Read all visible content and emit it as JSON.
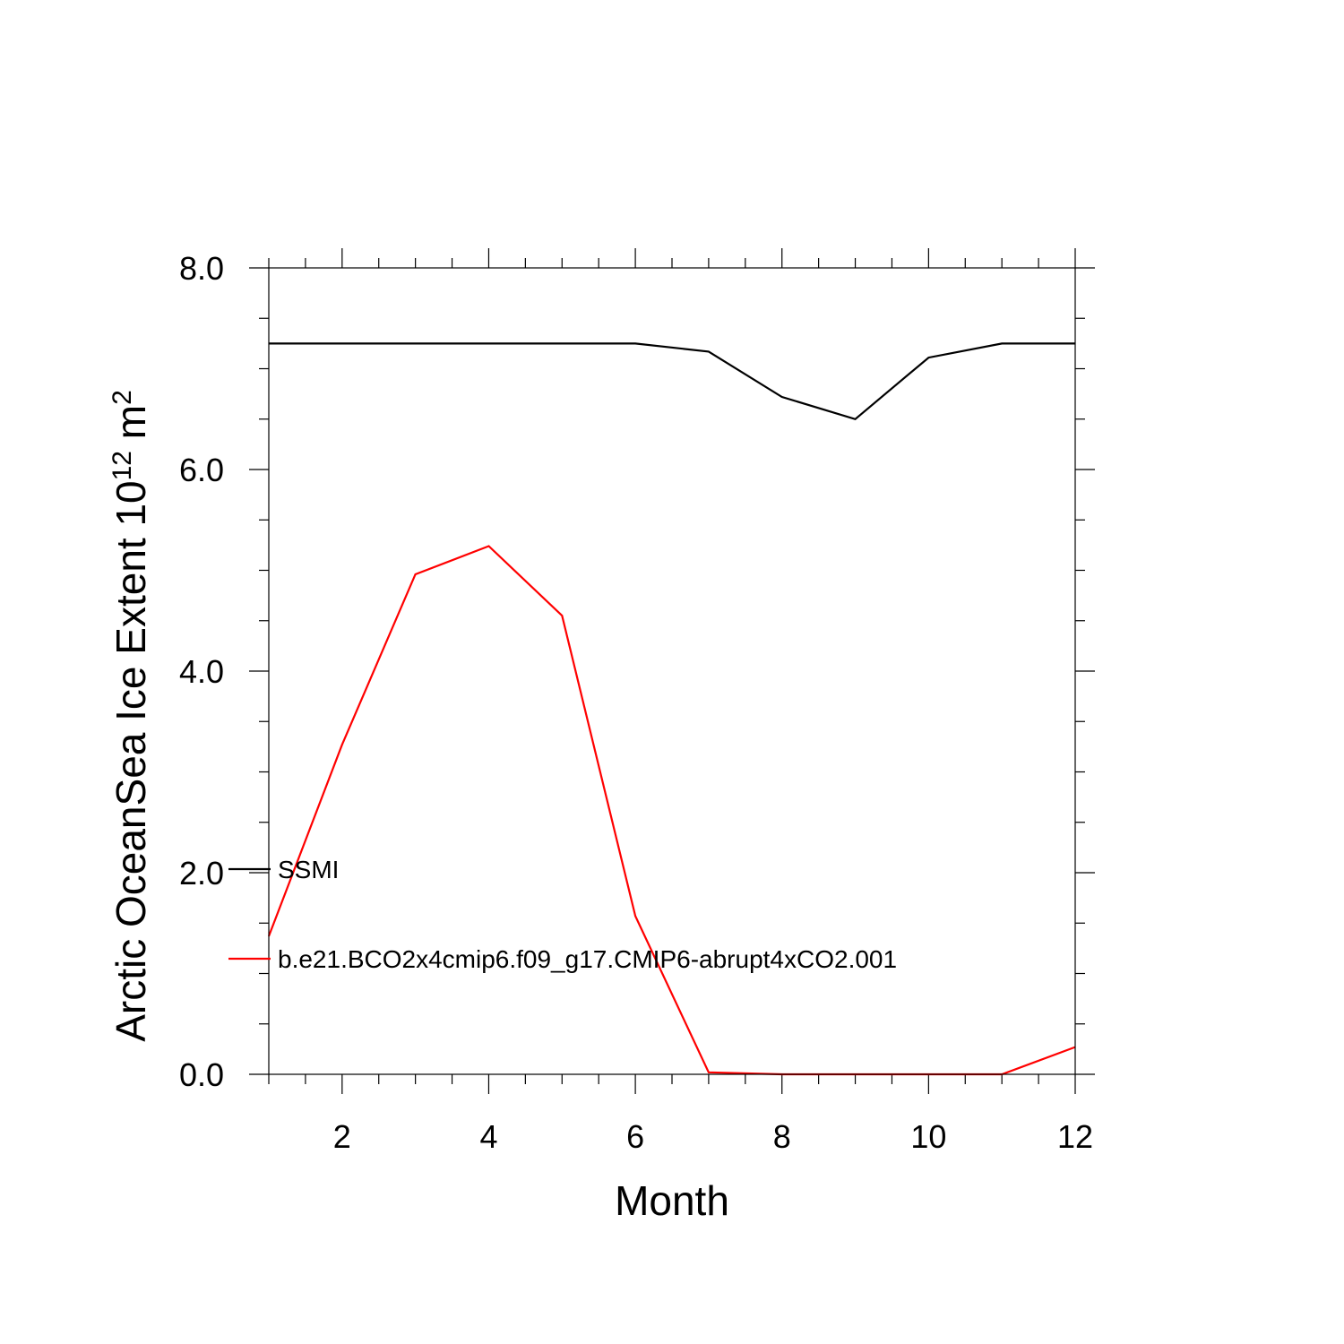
{
  "chart_data": {
    "type": "line",
    "xlabel": "Month",
    "ylabel": {
      "prefix": "Arctic OceanSea Ice Extent 10",
      "exponent": "12",
      "unit_base": " m",
      "unit_exponent": "2"
    },
    "xlim": [
      1,
      12
    ],
    "ylim": [
      0.0,
      8.0
    ],
    "x_ticks": [
      2,
      4,
      6,
      8,
      10,
      12
    ],
    "x_tick_labels": [
      "2",
      "4",
      "6",
      "8",
      "10",
      "12"
    ],
    "x_minor_step": 0.5,
    "y_ticks": [
      0.0,
      2.0,
      4.0,
      6.0,
      8.0
    ],
    "y_tick_labels": [
      "0.0",
      "2.0",
      "4.0",
      "6.0",
      "8.0"
    ],
    "y_minor_step": 0.5,
    "grid": false,
    "legend_placement": "lower-left inside",
    "x": [
      1,
      2,
      3,
      4,
      5,
      6,
      7,
      8,
      9,
      10,
      11,
      12
    ],
    "series": [
      {
        "name": "SSMI",
        "color": "#000000",
        "values": [
          7.25,
          7.25,
          7.25,
          7.25,
          7.25,
          7.25,
          7.17,
          6.72,
          6.5,
          7.11,
          7.25,
          7.25
        ]
      },
      {
        "name": "b.e21.BCO2x4cmip6.f09_g17.CMIP6-abrupt4xCO2.001",
        "color": "#ff0000",
        "values": [
          1.37,
          3.27,
          4.96,
          5.24,
          4.55,
          1.57,
          0.02,
          0.0,
          0.0,
          0.0,
          0.0,
          0.27
        ]
      }
    ]
  }
}
